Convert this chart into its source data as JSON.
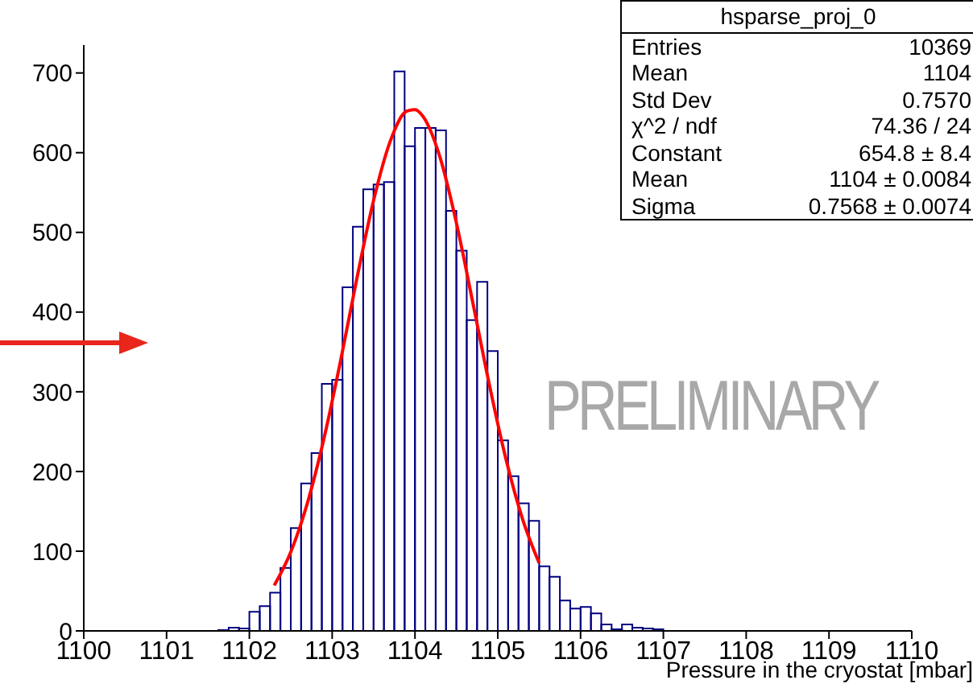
{
  "chart_data": {
    "type": "histogram",
    "title": "hsparse_proj_0",
    "xlabel": "Pressure in the cryostat [mbar]",
    "color": "#000080",
    "bins": [
      1101.625,
      1101.75,
      1101.875,
      1102,
      1102.125,
      1102.25,
      1102.375,
      1102.5,
      1102.625,
      1102.75,
      1102.875,
      1103,
      1103.125,
      1103.25,
      1103.375,
      1103.5,
      1103.625,
      1103.75,
      1103.875,
      1104,
      1104.125,
      1104.25,
      1104.375,
      1104.5,
      1104.625,
      1104.75,
      1104.875,
      1105,
      1105.125,
      1105.25,
      1105.375,
      1105.5,
      1105.625,
      1105.75,
      1105.875,
      1106,
      1106.125,
      1106.25,
      1106.375,
      1106.5,
      1106.625,
      1106.75,
      1106.875,
      1107
    ],
    "values": [
      1,
      4,
      3,
      24,
      31,
      48,
      79,
      129,
      185,
      223,
      310,
      315,
      431,
      507,
      554,
      560,
      563,
      702,
      608,
      631,
      631,
      628,
      527,
      477,
      390,
      438,
      351,
      239,
      194,
      160,
      138,
      81,
      68,
      38,
      28,
      30,
      22,
      8,
      2,
      8,
      4,
      3,
      2
    ],
    "series": [
      {
        "type": "line",
        "color": "#ff0000",
        "x": [
          1102.3,
          1102.5,
          1102.7,
          1102.9,
          1103.1,
          1103.3,
          1103.5,
          1103.7,
          1103.9,
          1104.0,
          1104.1,
          1104.3,
          1104.5,
          1104.7,
          1104.9,
          1105.1,
          1105.3,
          1105.5
        ],
        "values": [
          57,
          99,
          160,
          241,
          338,
          443,
          540,
          614,
          652,
          654,
          645,
          595,
          512,
          411,
          308,
          215,
          140,
          85
        ]
      }
    ],
    "xlim": [
      1100,
      1110
    ],
    "xticks": [
      1100,
      1101,
      1102,
      1103,
      1104,
      1105,
      1106,
      1107,
      1108,
      1109,
      1110
    ],
    "ylim": [
      0,
      735
    ],
    "yticks": [
      0,
      100,
      200,
      300,
      400,
      500,
      600,
      700
    ],
    "grid": false,
    "legend": false,
    "marker": "none",
    "line_style": "solid",
    "annotations": [
      "Entries",
      "10369",
      "Mean",
      "1104",
      "Std Dev",
      "0.7570",
      "χ^2 / ndf",
      "74.36 / 24",
      "Constant",
      "654.8 ± 8.4",
      "Mean",
      "1104 ± 0.0084",
      "Sigma",
      "0.7568 ± 0.0074",
      "PRELIMINARY"
    ]
  }
}
